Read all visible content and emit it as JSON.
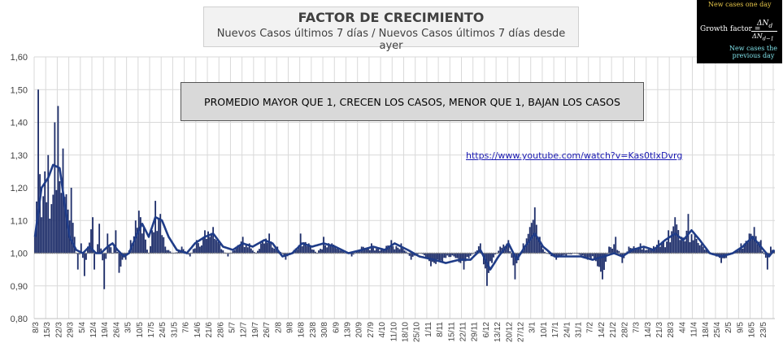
{
  "title": "FACTOR DE CRECIMIENTO",
  "subtitle": "Nuevos Casos últimos 7 días / Nuevos Casos últimos 7 días desde ayer",
  "note": "PROMEDIO MAYOR QUE 1, CRECEN LOS CASOS, MENOR QUE 1, BAJAN LOS CASOS",
  "link": "https://www.youtube.com/watch?v=Kas0tIxDvrg",
  "formula": {
    "top_label": "New cases one day",
    "lhs": "Growth factor =",
    "numerator": "ΔN",
    "numerator_sub": "d",
    "denominator": "ΔN",
    "denominator_sub": "d−1",
    "bottom_label_1": "New cases the",
    "bottom_label_2": "previous day"
  },
  "colors": {
    "bar": "#1f2f6b",
    "line": "#1f3c88",
    "grid": "#d9d9d9",
    "axis_text": "#404040",
    "plot_bg": "#ffffff"
  },
  "chart_data": {
    "type": "bar",
    "title": "FACTOR DE CRECIMIENTO",
    "subtitle": "Nuevos Casos últimos 7 días / Nuevos Casos últimos 7 días desde ayer",
    "ylim": [
      0.8,
      1.6
    ],
    "yticks": [
      "0,80",
      "0,90",
      "1,00",
      "1,10",
      "1,20",
      "1,30",
      "1,40",
      "1,50",
      "1,60"
    ],
    "baseline": 1.0,
    "grid": true,
    "x_start": "2020-03-08",
    "x_end": "2021-05-30",
    "x_labels": [
      "8/3",
      "15/3",
      "22/3",
      "29/3",
      "5/4",
      "12/4",
      "19/4",
      "26/4",
      "3/5",
      "10/5",
      "17/5",
      "24/5",
      "31/5",
      "7/6",
      "14/6",
      "21/6",
      "28/6",
      "5/7",
      "12/7",
      "19/7",
      "26/7",
      "2/8",
      "9/8",
      "16/8",
      "23/8",
      "30/8",
      "6/9",
      "13/9",
      "20/9",
      "27/9",
      "4/10",
      "11/10",
      "18/10",
      "25/10",
      "1/11",
      "8/11",
      "15/11",
      "22/11",
      "29/11",
      "6/12",
      "13/12",
      "20/12",
      "27/12",
      "3/1",
      "10/1",
      "17/1",
      "24/1",
      "31/1",
      "7/2",
      "14/2",
      "21/2",
      "28/2",
      "7/3",
      "14/3",
      "21/3",
      "28/3",
      "4/4",
      "11/4",
      "18/4",
      "25/4",
      "2/5",
      "9/5",
      "16/5",
      "23/5"
    ],
    "series": [
      {
        "type": "bar",
        "daily_factor_keypoints": [
          [
            "2020-03-08",
            1.05
          ],
          [
            "2020-03-10",
            1.5
          ],
          [
            "2020-03-12",
            1.11
          ],
          [
            "2020-03-14",
            1.25
          ],
          [
            "2020-03-16",
            1.3
          ],
          [
            "2020-03-18",
            1.15
          ],
          [
            "2020-03-20",
            1.4
          ],
          [
            "2020-03-22",
            1.45
          ],
          [
            "2020-03-23",
            1.22
          ],
          [
            "2020-03-25",
            1.32
          ],
          [
            "2020-03-27",
            1.18
          ],
          [
            "2020-03-29",
            1.1
          ],
          [
            "2020-03-30",
            1.2
          ],
          [
            "2020-04-01",
            1.05
          ],
          [
            "2020-04-03",
            0.95
          ],
          [
            "2020-04-05",
            1.03
          ],
          [
            "2020-04-07",
            0.93
          ],
          [
            "2020-04-09",
            1.02
          ],
          [
            "2020-04-12",
            1.11
          ],
          [
            "2020-04-13",
            0.95
          ],
          [
            "2020-04-16",
            1.09
          ],
          [
            "2020-04-19",
            0.89
          ],
          [
            "2020-04-21",
            1.06
          ],
          [
            "2020-04-24",
            1.0
          ],
          [
            "2020-04-26",
            1.07
          ],
          [
            "2020-04-28",
            0.94
          ],
          [
            "2020-05-02",
            0.98
          ],
          [
            "2020-05-05",
            1.04
          ],
          [
            "2020-05-08",
            1.1
          ],
          [
            "2020-05-10",
            1.13
          ],
          [
            "2020-05-13",
            1.08
          ],
          [
            "2020-05-16",
            1.0
          ],
          [
            "2020-05-18",
            1.07
          ],
          [
            "2020-05-20",
            1.16
          ],
          [
            "2020-05-23",
            1.12
          ],
          [
            "2020-05-26",
            1.02
          ],
          [
            "2020-05-31",
            1.0
          ],
          [
            "2020-06-05",
            1.02
          ],
          [
            "2020-06-10",
            0.99
          ],
          [
            "2020-06-14",
            1.04
          ],
          [
            "2020-06-19",
            1.07
          ],
          [
            "2020-06-24",
            1.08
          ],
          [
            "2020-06-28",
            1.03
          ],
          [
            "2020-07-03",
            0.99
          ],
          [
            "2020-07-08",
            1.02
          ],
          [
            "2020-07-12",
            1.05
          ],
          [
            "2020-07-16",
            1.03
          ],
          [
            "2020-07-20",
            1.0
          ],
          [
            "2020-07-24",
            1.04
          ],
          [
            "2020-07-28",
            1.06
          ],
          [
            "2020-08-02",
            1.02
          ],
          [
            "2020-08-07",
            0.98
          ],
          [
            "2020-08-12",
            1.01
          ],
          [
            "2020-08-16",
            1.06
          ],
          [
            "2020-08-21",
            1.03
          ],
          [
            "2020-08-26",
            1.0
          ],
          [
            "2020-08-30",
            1.05
          ],
          [
            "2020-09-04",
            1.03
          ],
          [
            "2020-09-10",
            1.01
          ],
          [
            "2020-09-16",
            0.99
          ],
          [
            "2020-09-22",
            1.02
          ],
          [
            "2020-09-28",
            1.03
          ],
          [
            "2020-10-04",
            1.01
          ],
          [
            "2020-10-10",
            1.04
          ],
          [
            "2020-10-16",
            1.03
          ],
          [
            "2020-10-22",
            0.98
          ],
          [
            "2020-10-28",
            1.0
          ],
          [
            "2020-11-03",
            0.96
          ],
          [
            "2020-11-10",
            0.97
          ],
          [
            "2020-11-17",
            0.99
          ],
          [
            "2020-11-23",
            0.95
          ],
          [
            "2020-11-29",
            1.0
          ],
          [
            "2020-12-03",
            1.03
          ],
          [
            "2020-12-07",
            0.9
          ],
          [
            "2020-12-10",
            0.97
          ],
          [
            "2020-12-15",
            1.02
          ],
          [
            "2020-12-20",
            1.04
          ],
          [
            "2020-12-24",
            0.92
          ],
          [
            "2020-12-29",
            1.03
          ],
          [
            "2021-01-02",
            1.08
          ],
          [
            "2021-01-05",
            1.14
          ],
          [
            "2021-01-08",
            1.05
          ],
          [
            "2021-01-12",
            1.0
          ],
          [
            "2021-01-18",
            0.98
          ],
          [
            "2021-01-24",
            0.99
          ],
          [
            "2021-01-30",
            1.0
          ],
          [
            "2021-02-06",
            0.98
          ],
          [
            "2021-02-12",
            0.96
          ],
          [
            "2021-02-15",
            0.92
          ],
          [
            "2021-02-19",
            1.02
          ],
          [
            "2021-02-23",
            1.05
          ],
          [
            "2021-02-27",
            0.97
          ],
          [
            "2021-03-03",
            1.02
          ],
          [
            "2021-03-10",
            1.03
          ],
          [
            "2021-03-16",
            1.01
          ],
          [
            "2021-03-21",
            1.04
          ],
          [
            "2021-03-27",
            1.07
          ],
          [
            "2021-03-31",
            1.11
          ],
          [
            "2021-04-04",
            1.05
          ],
          [
            "2021-04-08",
            1.12
          ],
          [
            "2021-04-12",
            1.06
          ],
          [
            "2021-04-17",
            1.02
          ],
          [
            "2021-04-22",
            1.0
          ],
          [
            "2021-04-28",
            0.97
          ],
          [
            "2021-05-04",
            1.0
          ],
          [
            "2021-05-10",
            1.03
          ],
          [
            "2021-05-15",
            1.06
          ],
          [
            "2021-05-18",
            1.08
          ],
          [
            "2021-05-22",
            1.04
          ],
          [
            "2021-05-26",
            0.95
          ],
          [
            "2021-05-28",
            1.02
          ],
          [
            "2021-05-30",
            1.01
          ]
        ]
      },
      {
        "type": "line",
        "moving_average_keypoints": [
          [
            "2020-03-08",
            1.05
          ],
          [
            "2020-03-12",
            1.2
          ],
          [
            "2020-03-16",
            1.23
          ],
          [
            "2020-03-19",
            1.27
          ],
          [
            "2020-03-23",
            1.26
          ],
          [
            "2020-03-26",
            1.15
          ],
          [
            "2020-03-29",
            1.05
          ],
          [
            "2020-04-02",
            1.01
          ],
          [
            "2020-04-06",
            1.0
          ],
          [
            "2020-04-10",
            1.02
          ],
          [
            "2020-04-14",
            1.0
          ],
          [
            "2020-04-17",
            1.0
          ],
          [
            "2020-04-21",
            1.02
          ],
          [
            "2020-04-24",
            1.03
          ],
          [
            "2020-04-27",
            1.01
          ],
          [
            "2020-05-01",
            0.99
          ],
          [
            "2020-05-04",
            1.0
          ],
          [
            "2020-05-09",
            1.06
          ],
          [
            "2020-05-12",
            1.09
          ],
          [
            "2020-05-16",
            1.05
          ],
          [
            "2020-05-20",
            1.11
          ],
          [
            "2020-05-24",
            1.1
          ],
          [
            "2020-05-28",
            1.05
          ],
          [
            "2020-06-02",
            1.01
          ],
          [
            "2020-06-08",
            1.0
          ],
          [
            "2020-06-13",
            1.03
          ],
          [
            "2020-06-19",
            1.05
          ],
          [
            "2020-06-24",
            1.06
          ],
          [
            "2020-06-30",
            1.02
          ],
          [
            "2020-07-06",
            1.01
          ],
          [
            "2020-07-12",
            1.03
          ],
          [
            "2020-07-18",
            1.02
          ],
          [
            "2020-07-25",
            1.04
          ],
          [
            "2020-07-30",
            1.03
          ],
          [
            "2020-08-05",
            0.99
          ],
          [
            "2020-08-11",
            1.0
          ],
          [
            "2020-08-17",
            1.03
          ],
          [
            "2020-08-23",
            1.02
          ],
          [
            "2020-08-30",
            1.03
          ],
          [
            "2020-09-06",
            1.02
          ],
          [
            "2020-09-14",
            1.0
          ],
          [
            "2020-09-22",
            1.01
          ],
          [
            "2020-09-29",
            1.02
          ],
          [
            "2020-10-06",
            1.01
          ],
          [
            "2020-10-12",
            1.03
          ],
          [
            "2020-10-20",
            1.01
          ],
          [
            "2020-10-27",
            0.99
          ],
          [
            "2020-11-05",
            0.98
          ],
          [
            "2020-11-12",
            0.97
          ],
          [
            "2020-11-20",
            0.98
          ],
          [
            "2020-11-27",
            0.98
          ],
          [
            "2020-12-03",
            1.01
          ],
          [
            "2020-12-09",
            0.95
          ],
          [
            "2020-12-14",
            0.99
          ],
          [
            "2020-12-20",
            1.03
          ],
          [
            "2020-12-25",
            0.98
          ],
          [
            "2020-12-30",
            1.02
          ],
          [
            "2021-01-05",
            1.06
          ],
          [
            "2021-01-10",
            1.02
          ],
          [
            "2021-01-17",
            0.99
          ],
          [
            "2021-01-25",
            0.99
          ],
          [
            "2021-02-02",
            0.99
          ],
          [
            "2021-02-09",
            0.98
          ],
          [
            "2021-02-16",
            0.99
          ],
          [
            "2021-02-22",
            1.0
          ],
          [
            "2021-02-27",
            0.99
          ],
          [
            "2021-03-05",
            1.01
          ],
          [
            "2021-03-12",
            1.02
          ],
          [
            "2021-03-18",
            1.01
          ],
          [
            "2021-03-25",
            1.04
          ],
          [
            "2021-03-31",
            1.06
          ],
          [
            "2021-04-05",
            1.04
          ],
          [
            "2021-04-10",
            1.07
          ],
          [
            "2021-04-15",
            1.04
          ],
          [
            "2021-04-21",
            1.0
          ],
          [
            "2021-04-28",
            0.99
          ],
          [
            "2021-05-05",
            1.0
          ],
          [
            "2021-05-11",
            1.02
          ],
          [
            "2021-05-17",
            1.05
          ],
          [
            "2021-05-22",
            1.02
          ],
          [
            "2021-05-27",
            0.99
          ],
          [
            "2021-05-30",
            1.01
          ]
        ]
      }
    ]
  }
}
